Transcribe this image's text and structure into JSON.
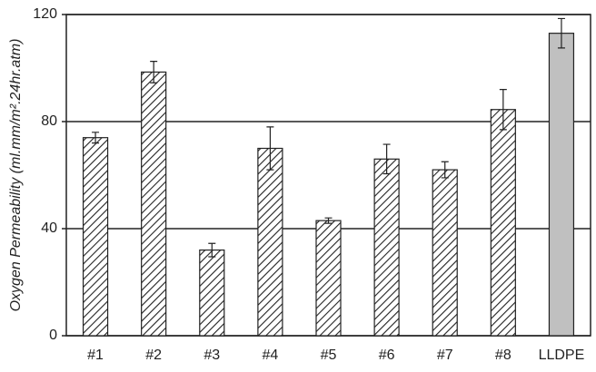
{
  "chart_data": {
    "type": "bar",
    "ylabel": "Oxygen Permeability (ml.mm/m².24hr.atm)",
    "categories": [
      "#1",
      "#2",
      "#3",
      "#4",
      "#5",
      "#6",
      "#7",
      "#8",
      "LLDPE"
    ],
    "values": [
      74,
      98.5,
      32,
      70,
      43,
      66,
      62,
      84.5,
      113
    ],
    "errors": [
      2,
      4,
      2.5,
      8,
      1,
      5.5,
      3,
      7.5,
      5.5
    ],
    "fills": [
      "hatch",
      "hatch",
      "hatch",
      "hatch",
      "hatch",
      "hatch",
      "hatch",
      "hatch",
      "#c0c0c0"
    ],
    "ylim": [
      0,
      120
    ],
    "yticks": [
      0,
      40,
      80,
      120
    ],
    "grid": true
  }
}
